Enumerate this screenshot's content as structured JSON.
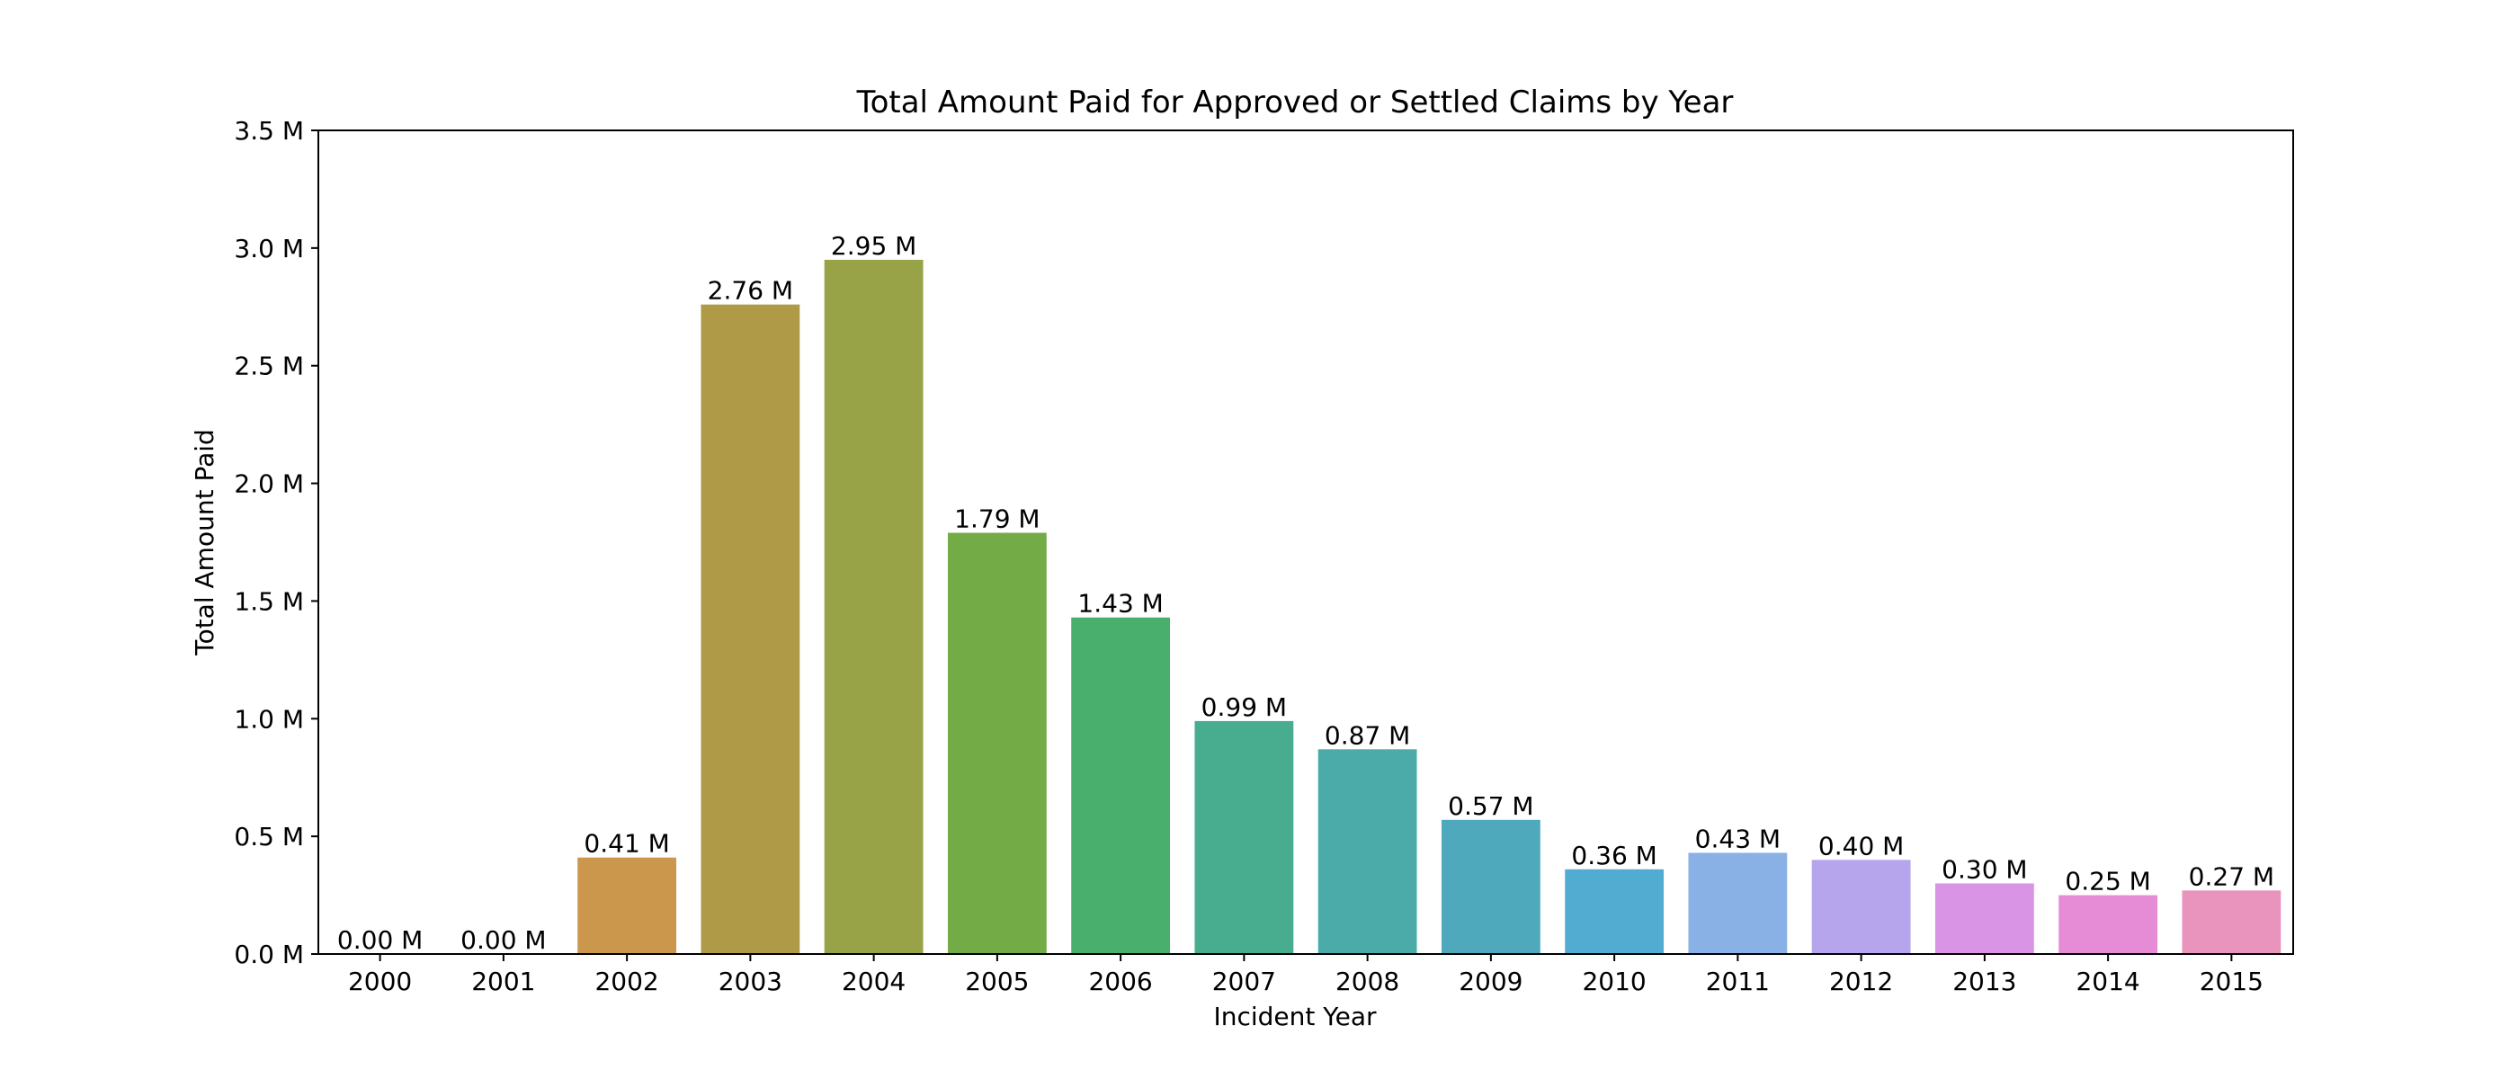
{
  "chart_data": {
    "type": "bar",
    "title": "Total Amount Paid for Approved or Settled Claims by Year",
    "xlabel": "Incident Year",
    "ylabel": "Total Amount Paid",
    "categories": [
      "2000",
      "2001",
      "2002",
      "2003",
      "2004",
      "2005",
      "2006",
      "2007",
      "2008",
      "2009",
      "2010",
      "2011",
      "2012",
      "2013",
      "2014",
      "2015"
    ],
    "values": [
      0.0,
      0.0,
      0.41,
      2.76,
      2.95,
      1.79,
      1.43,
      0.99,
      0.87,
      0.57,
      0.36,
      0.43,
      0.4,
      0.3,
      0.25,
      0.27
    ],
    "data_labels": [
      "0.00 M",
      "0.00 M",
      "0.41 M",
      "2.76 M",
      "2.95 M",
      "1.79 M",
      "1.43 M",
      "0.99 M",
      "0.87 M",
      "0.57 M",
      "0.36 M",
      "0.43 M",
      "0.40 M",
      "0.30 M",
      "0.25 M",
      "0.27 M"
    ],
    "ylim": [
      0,
      3.5
    ],
    "yticks": [
      0.0,
      0.5,
      1.0,
      1.5,
      2.0,
      2.5,
      3.0,
      3.5
    ],
    "ytick_labels": [
      "0.0 M",
      "0.5 M",
      "1.0 M",
      "1.5 M",
      "2.0 M",
      "2.5 M",
      "3.0 M",
      "3.5 M"
    ],
    "grid": false,
    "colors": [
      "#e6a0a0",
      "#e6b08e",
      "#cb974d",
      "#ae9a47",
      "#98a247",
      "#73ac47",
      "#48af6d",
      "#48ad8f",
      "#4aaba9",
      "#4da9bb",
      "#52acd2",
      "#8ab1e6",
      "#b6a5ec",
      "#d994e6",
      "#e68cd6",
      "#e894bd"
    ]
  }
}
